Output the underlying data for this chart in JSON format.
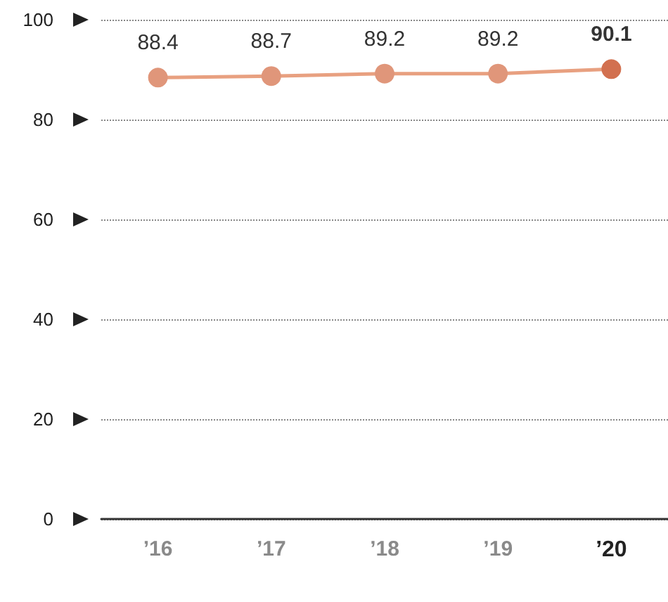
{
  "chart_data": {
    "type": "line",
    "categories": [
      "’16",
      "’17",
      "’18",
      "’19",
      "’20"
    ],
    "series": [
      {
        "color": "#e8a080",
        "colors": [
          "#e0967a",
          "#e0967a",
          "#e0967a",
          "#e0967a",
          "#d2704f"
        ],
        "values": [
          88.4,
          88.7,
          89.2,
          89.2,
          90.1
        ]
      }
    ],
    "ylim": [
      0,
      100
    ],
    "yticks": [
      0,
      20,
      40,
      60,
      80,
      100
    ],
    "grid": "y",
    "marker": "circle",
    "data_labels": true
  }
}
